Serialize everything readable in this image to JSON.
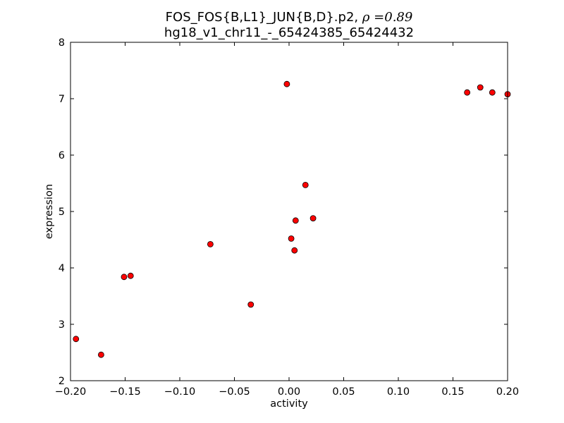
{
  "chart_data": {
    "type": "scatter",
    "title_line1": "FOS_FOS{B,L1}_JUN{B,D}.p2, ",
    "title_rho": "ρ =0.89",
    "title_line2": "hg18_v1_chr11_-_65424385_65424432",
    "xlabel": "activity",
    "ylabel": "expression",
    "xlim": [
      -0.2,
      0.2
    ],
    "ylim": [
      2,
      8
    ],
    "x_ticks": [
      -0.2,
      -0.15,
      -0.1,
      -0.05,
      0.0,
      0.05,
      0.1,
      0.15,
      0.2
    ],
    "x_tick_labels": [
      "−0.20",
      "−0.15",
      "−0.10",
      "−0.05",
      "0.00",
      "0.05",
      "0.10",
      "0.15",
      "0.20"
    ],
    "y_ticks": [
      2,
      3,
      4,
      5,
      6,
      7,
      8
    ],
    "y_tick_labels": [
      "2",
      "3",
      "4",
      "5",
      "6",
      "7",
      "8"
    ],
    "grid": false,
    "marker_color": "#ff0000",
    "marker_edge_color": "#000000",
    "points": [
      {
        "x": -0.195,
        "y": 2.74
      },
      {
        "x": -0.172,
        "y": 2.46
      },
      {
        "x": -0.151,
        "y": 3.84
      },
      {
        "x": -0.145,
        "y": 3.86
      },
      {
        "x": -0.072,
        "y": 4.42
      },
      {
        "x": -0.035,
        "y": 3.35
      },
      {
        "x": -0.002,
        "y": 7.26
      },
      {
        "x": 0.002,
        "y": 4.52
      },
      {
        "x": 0.005,
        "y": 4.31
      },
      {
        "x": 0.006,
        "y": 4.84
      },
      {
        "x": 0.015,
        "y": 5.47
      },
      {
        "x": 0.022,
        "y": 4.88
      },
      {
        "x": 0.163,
        "y": 7.11
      },
      {
        "x": 0.175,
        "y": 7.2
      },
      {
        "x": 0.186,
        "y": 7.11
      },
      {
        "x": 0.2,
        "y": 7.08
      }
    ]
  }
}
